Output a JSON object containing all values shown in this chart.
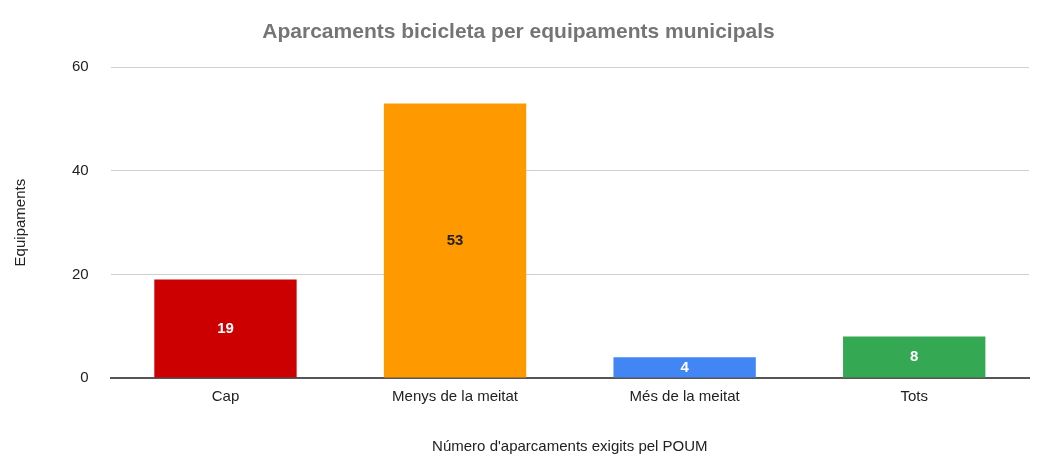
{
  "chart_data": {
    "type": "bar",
    "title": "Aparcaments bicicleta per equipaments municipals",
    "xlabel": "Número d'aparcaments exigits pel POUM",
    "ylabel": "Equipaments",
    "categories": [
      "Cap",
      "Menys de la meitat",
      "Més de la meitat",
      "Tots"
    ],
    "values": [
      19,
      53,
      4,
      8
    ],
    "colors": [
      "#cc0000",
      "#ff9900",
      "#4285f4",
      "#34a853"
    ],
    "ylim": [
      0,
      60
    ],
    "yticks": [
      0,
      20,
      40,
      60
    ],
    "grid": "y",
    "data_labels": true
  }
}
